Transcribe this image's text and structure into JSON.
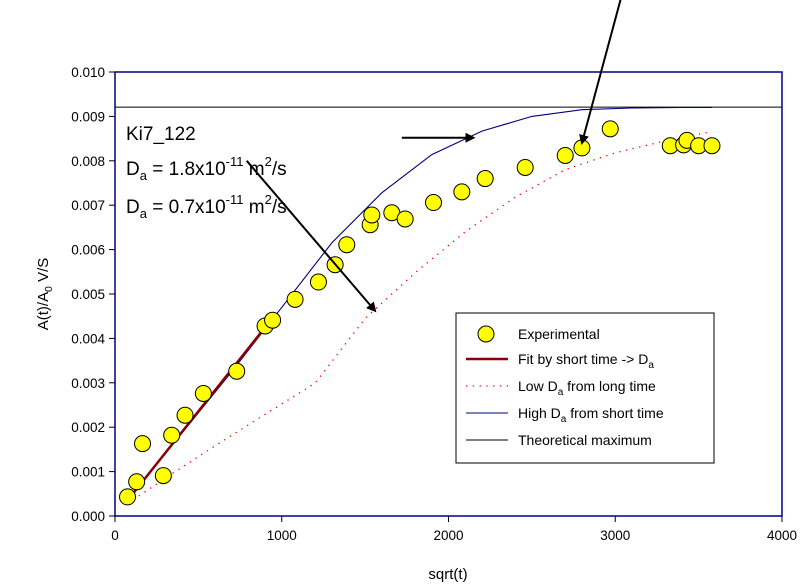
{
  "chart_data": {
    "type": "scatter",
    "title": "",
    "xlabel": "sqrt(t)",
    "ylabel": {
      "main": "A(t)/A",
      "sub": "0",
      "suffix": " V/S"
    },
    "xlim": [
      0,
      4000
    ],
    "ylim": [
      0,
      0.01
    ],
    "x_ticks": [
      "0",
      "1000",
      "2000",
      "3000",
      "4000"
    ],
    "y_ticks": [
      "0.000",
      "0.001",
      "0.002",
      "0.003",
      "0.004",
      "0.005",
      "0.006",
      "0.007",
      "0.008",
      "0.009",
      "0.010"
    ],
    "grid": false,
    "legend_position": "bottom-right",
    "colors": {
      "experimental_fill": "#ffff00",
      "fit_short": "#8b0000",
      "low_da": "#ff0000",
      "high_da": "#000080",
      "theoretical": "#000000",
      "frame": "#000080"
    },
    "annotations": {
      "sample": "Ki7_122",
      "da_high": {
        "symbol": "D",
        "sub": "a",
        "eq": " = 1.8x10",
        "exp": "-11",
        "unit": " m",
        "unit_exp": "2",
        "unit_end": "/s"
      },
      "da_low": {
        "symbol": "D",
        "sub": "a",
        "eq": " = 0.7x10",
        "exp": "-11",
        "unit": " m",
        "unit_exp": "2",
        "unit_end": "/s"
      }
    },
    "series": [
      {
        "name": "Experimental",
        "kind": "scatter",
        "x": [
          75,
          130,
          165,
          290,
          340,
          420,
          530,
          730,
          900,
          945,
          1080,
          1220,
          1320,
          1390,
          1530,
          1540,
          1660,
          1740,
          1910,
          2080,
          2220,
          2460,
          2700,
          2800,
          2970,
          3330,
          3410,
          3430,
          3500,
          3580
        ],
        "y": [
          0.00043,
          0.00077,
          0.00163,
          0.00091,
          0.00182,
          0.00227,
          0.00276,
          0.00326,
          0.00428,
          0.00441,
          0.00488,
          0.00527,
          0.00566,
          0.00611,
          0.00656,
          0.00678,
          0.00683,
          0.00669,
          0.00706,
          0.0073,
          0.0076,
          0.00785,
          0.00812,
          0.00829,
          0.00872,
          0.00834,
          0.00836,
          0.00846,
          0.00834,
          0.00834
        ]
      },
      {
        "name": {
          "main": "Fit by short time -> D",
          "sub": "a",
          "suffix": ""
        },
        "kind": "line",
        "x": [
          75,
          900
        ],
        "y": [
          0.00035,
          0.00425
        ]
      },
      {
        "name": {
          "main": "Low D",
          "sub": "a",
          "suffix": " from long time"
        },
        "kind": "dotted",
        "x": [
          75,
          300,
          600,
          900,
          1200,
          1500,
          1800,
          2100,
          2400,
          2700,
          3000,
          3300,
          3580
        ],
        "y": [
          0.00028,
          0.00085,
          0.00158,
          0.00229,
          0.00299,
          0.00445,
          0.00548,
          0.0064,
          0.00718,
          0.0078,
          0.00818,
          0.00845,
          0.00866
        ]
      },
      {
        "name": {
          "main": "High D",
          "sub": "a",
          "suffix": " from short time"
        },
        "kind": "line",
        "x": [
          75,
          400,
          700,
          1000,
          1300,
          1600,
          1900,
          2200,
          2500,
          2800,
          3100,
          3400,
          3580
        ],
        "y": [
          0.00035,
          0.00186,
          0.00325,
          0.0047,
          0.00615,
          0.00728,
          0.00814,
          0.00867,
          0.009,
          0.00915,
          0.00919,
          0.0092,
          0.0092
        ]
      },
      {
        "name": {
          "main": "Theoretical maximum",
          "sub": "",
          "suffix": ""
        },
        "kind": "hline",
        "y": 0.00921
      }
    ],
    "arrows": [
      {
        "from": [
          3080,
          0.0123
        ],
        "to": [
          2800,
          0.0084
        ]
      },
      {
        "from": [
          1720,
          0.00852
        ],
        "to": [
          2150,
          0.00852
        ]
      },
      {
        "from": [
          790,
          0.008
        ],
        "to": [
          1560,
          0.00462
        ]
      }
    ]
  }
}
